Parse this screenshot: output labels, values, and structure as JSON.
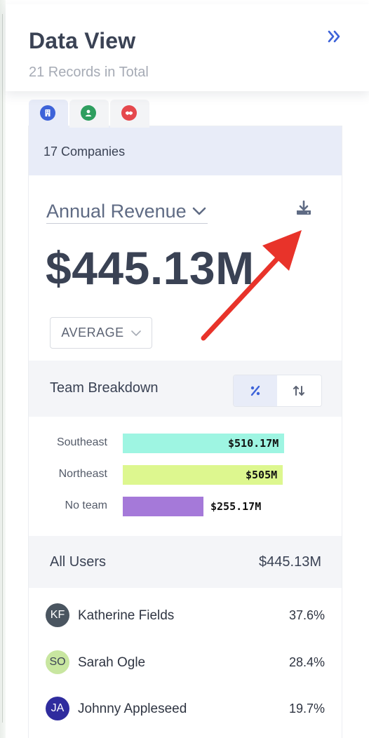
{
  "header": {
    "title": "Data View",
    "subtitle": "21 Records in Total",
    "collapse_icon": "double-chevron-right-icon"
  },
  "tabs": [
    {
      "name": "companies",
      "icon": "building-icon",
      "color": "#3d63d9",
      "active": true
    },
    {
      "name": "people",
      "icon": "person-icon",
      "color": "#2e9e5f",
      "active": false
    },
    {
      "name": "deals",
      "icon": "handshake-icon",
      "color": "#e5484d",
      "active": false
    }
  ],
  "companies_label": "17 Companies",
  "metric": {
    "label": "Annual Revenue",
    "value": "$445.13M",
    "aggregation": "AVERAGE"
  },
  "team_breakdown": {
    "title": "Team Breakdown",
    "rows": [
      {
        "label": "Southeast",
        "value_label": "$510.17M",
        "value": 510.17,
        "color": "#9ef5e2"
      },
      {
        "label": "Northeast",
        "value_label": "$505M",
        "value": 505,
        "color": "#ddf78f"
      },
      {
        "label": "No team",
        "value_label": "$255.17M",
        "value": 255.17,
        "color": "#a579d9"
      }
    ]
  },
  "all_users": {
    "title": "All Users",
    "total": "$445.13M",
    "users": [
      {
        "initials": "KF",
        "name": "Katherine Fields",
        "pct": "37.6%",
        "bg": "#4a5560",
        "fg": "#ffffff"
      },
      {
        "initials": "SO",
        "name": "Sarah Ogle",
        "pct": "28.4%",
        "bg": "#c8e6a0",
        "fg": "#3d4456"
      },
      {
        "initials": "JA",
        "name": "Johnny Appleseed",
        "pct": "19.7%",
        "bg": "#2f2c9e",
        "fg": "#ffffff"
      }
    ]
  },
  "colors": {
    "accent": "#3d63d9",
    "annotation_arrow": "#e8332a"
  }
}
